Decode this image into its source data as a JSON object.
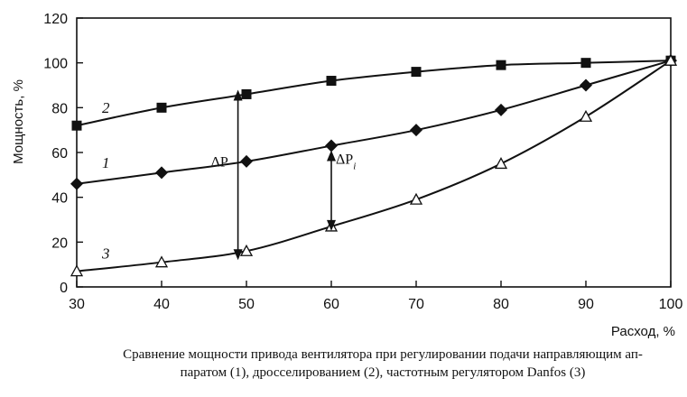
{
  "chart_data": {
    "type": "line",
    "xlabel": "Расход, %",
    "ylabel": "Мощность, %",
    "x": [
      30,
      40,
      50,
      60,
      70,
      80,
      90,
      100
    ],
    "xticks": [
      30,
      40,
      50,
      60,
      70,
      80,
      90,
      100
    ],
    "yticks": [
      0,
      20,
      40,
      60,
      80,
      100,
      120
    ],
    "xlim": [
      30,
      100
    ],
    "ylim": [
      0,
      120
    ],
    "grid": false,
    "series": [
      {
        "name": "1",
        "marker": "diamond",
        "values": [
          46,
          51,
          56,
          63,
          70,
          79,
          90,
          101
        ]
      },
      {
        "name": "2",
        "marker": "square",
        "values": [
          72,
          80,
          86,
          92,
          96,
          99,
          100,
          101
        ]
      },
      {
        "name": "3",
        "marker": "triangle-open",
        "values": [
          7,
          11,
          16,
          27,
          39,
          55,
          76,
          101
        ]
      }
    ],
    "annotations": [
      {
        "id": "delta_p",
        "label": "ΔP",
        "x": 49,
        "y_top": 88,
        "y_bottom": 12
      },
      {
        "id": "delta_pi",
        "label": "ΔPi",
        "x": 60,
        "y_top": 61,
        "y_bottom": 25
      }
    ],
    "caption": {
      "line1": "Сравнение мощности привода вентилятора при регулировании подачи направляющим ап-",
      "line2": "паратом (1), дросселированием (2), частотным регулятором Danfos (3)"
    }
  }
}
